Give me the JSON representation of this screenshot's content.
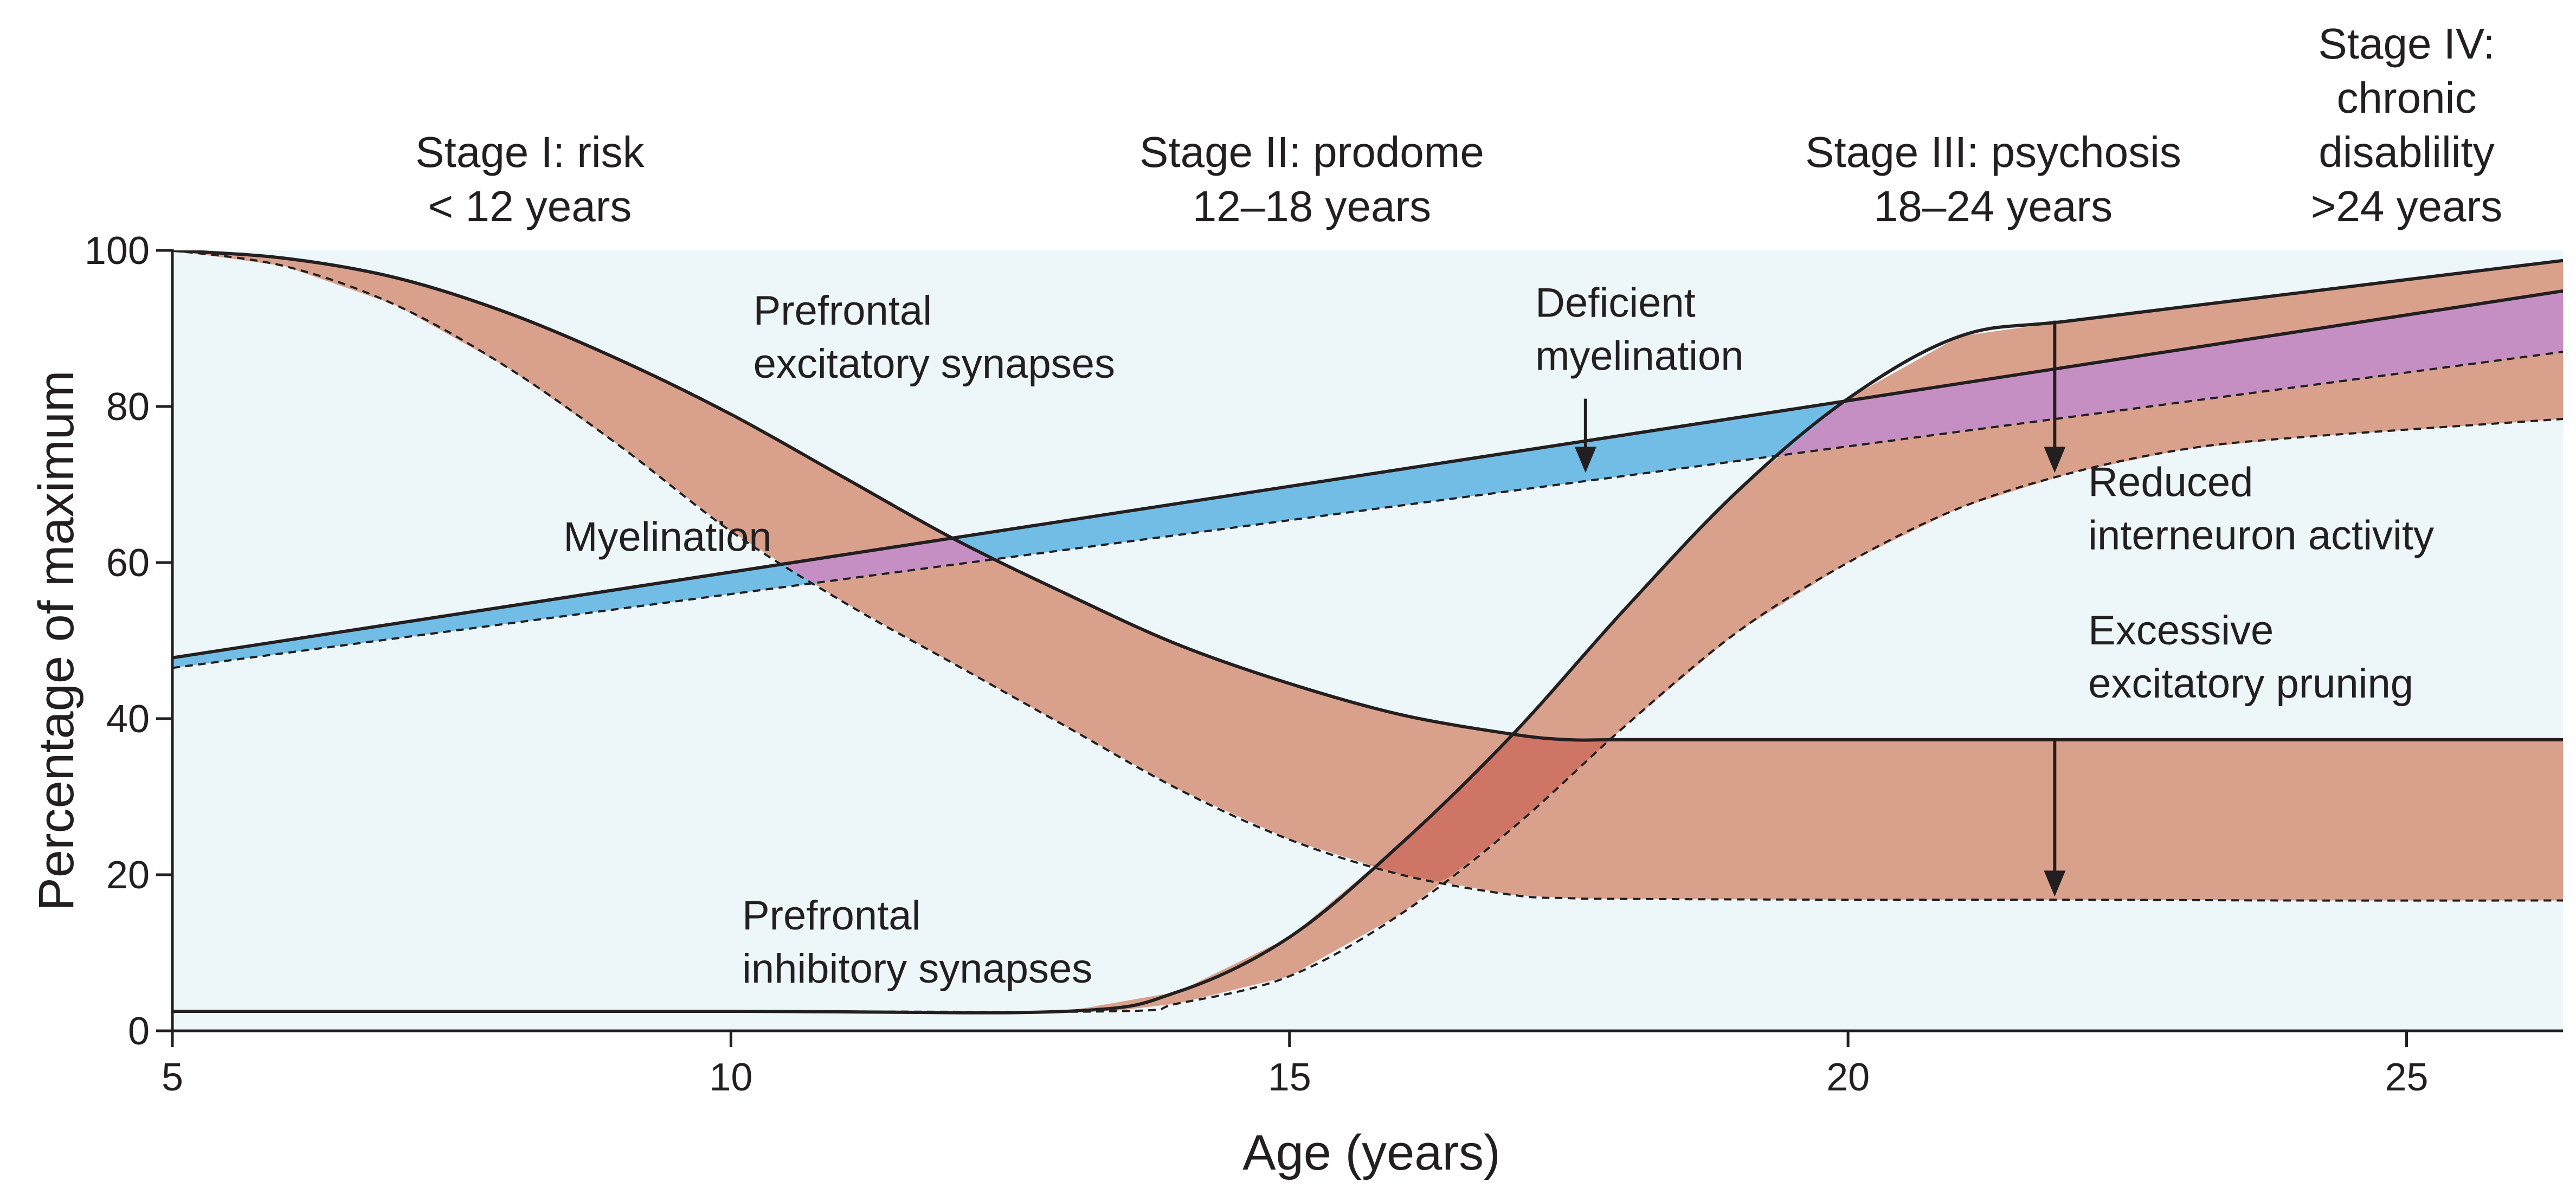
{
  "chart_data": {
    "type": "area",
    "xlabel": "Age (years)",
    "ylabel": "Percentage of maximum",
    "xlim": [
      5,
      26.4
    ],
    "ylim": [
      0,
      100
    ],
    "x_ticks": [
      5,
      10,
      15,
      20,
      25
    ],
    "y_ticks": [
      0,
      20,
      40,
      60,
      80,
      100
    ],
    "grid": false,
    "stages": [
      {
        "lines": [
          "Stage I: risk",
          "< 12 years"
        ],
        "x": 8.2
      },
      {
        "lines": [
          "Stage II: prodome",
          "12–18 years"
        ],
        "x": 15.2
      },
      {
        "lines": [
          "Stage III: psychosis",
          "18–24 years"
        ],
        "x": 21.3
      },
      {
        "lines": [
          "Stage IV:",
          "chronic",
          "disablility",
          ">24 years"
        ],
        "x": 25.0
      }
    ],
    "series": [
      {
        "key": "excitatory_normal",
        "style": "solid",
        "x": [
          5,
          6,
          7,
          8,
          9,
          10,
          11,
          12,
          13,
          14,
          15,
          16,
          17,
          17.5,
          18,
          20,
          22,
          24,
          26.4
        ],
        "values": [
          100,
          99,
          96.5,
          92,
          86,
          79,
          71,
          63,
          56,
          49.5,
          44.5,
          40.5,
          38,
          37.3,
          37.3,
          37.3,
          37.3,
          37.3,
          37.3
        ]
      },
      {
        "key": "excitatory_schizophrenia",
        "style": "dashed",
        "x": [
          5,
          6,
          7,
          8,
          9,
          10,
          11,
          12,
          13,
          14,
          15,
          16,
          17,
          17.5,
          18,
          20,
          22,
          24,
          26.4
        ],
        "values": [
          100,
          98,
          93,
          85,
          75,
          64,
          55,
          47,
          39,
          31,
          24.5,
          20,
          17.4,
          17,
          16.9,
          16.8,
          16.8,
          16.7,
          16.7
        ]
      },
      {
        "key": "inhibitory_normal",
        "style": "solid",
        "x": [
          5,
          10,
          13,
          14,
          15,
          16,
          17,
          18,
          19,
          20,
          21,
          22,
          24,
          26.4
        ],
        "values": [
          2.5,
          2.5,
          2.5,
          5,
          12,
          24,
          38,
          54,
          69,
          81,
          89,
          91,
          94.5,
          98.7
        ]
      },
      {
        "key": "inhibitory_schizophrenia",
        "style": "dashed",
        "x": [
          5,
          10,
          13.4,
          14,
          15,
          16,
          17,
          18,
          19,
          20,
          21,
          22,
          23,
          24,
          26.4
        ],
        "values": [
          2.5,
          2.5,
          2.5,
          3.5,
          7,
          15,
          26,
          39,
          51,
          60,
          67,
          71.5,
          74.5,
          76,
          78.4
        ]
      },
      {
        "key": "myelination_normal",
        "style": "solid",
        "x": [
          5,
          26.4
        ],
        "values": [
          47.8,
          94.8
        ]
      },
      {
        "key": "myelination_schizophrenia",
        "style": "dashed",
        "x": [
          5,
          26.4
        ],
        "values": [
          46.5,
          87
        ]
      }
    ],
    "annotations": [
      {
        "lines": [
          "Prefrontal",
          "excitatory synapses"
        ],
        "x": 10.2,
        "y": 90.5
      },
      {
        "lines": [
          "Deficient",
          "myelination"
        ],
        "x": 17.2,
        "y": 91.5
      },
      {
        "lines": [
          "Myelination"
        ],
        "x": 8.5,
        "y": 61.5
      },
      {
        "lines": [
          "Reduced",
          "interneuron activity"
        ],
        "x": 22.15,
        "y": 68.5
      },
      {
        "lines": [
          "Excessive",
          "excitatory pruning"
        ],
        "x": 22.15,
        "y": 49.5
      },
      {
        "lines": [
          "Prefrontal",
          "inhibitory synapses"
        ],
        "x": 10.1,
        "y": 13
      }
    ],
    "arrows": [
      {
        "x": 17.65,
        "from": 81,
        "to": 71.5
      },
      {
        "x": 21.85,
        "from": 91,
        "to": 71.5
      },
      {
        "x": 21.85,
        "from": 37.3,
        "to": 17.2
      }
    ],
    "colors": {
      "plot_bg": "#edf7fa",
      "pruning_band": "#d9a18c",
      "myelin_band": "#72bde5",
      "overlap_purple": "#c68fc4",
      "overlap_dark": "#cf7565",
      "line": "#231f20"
    }
  }
}
